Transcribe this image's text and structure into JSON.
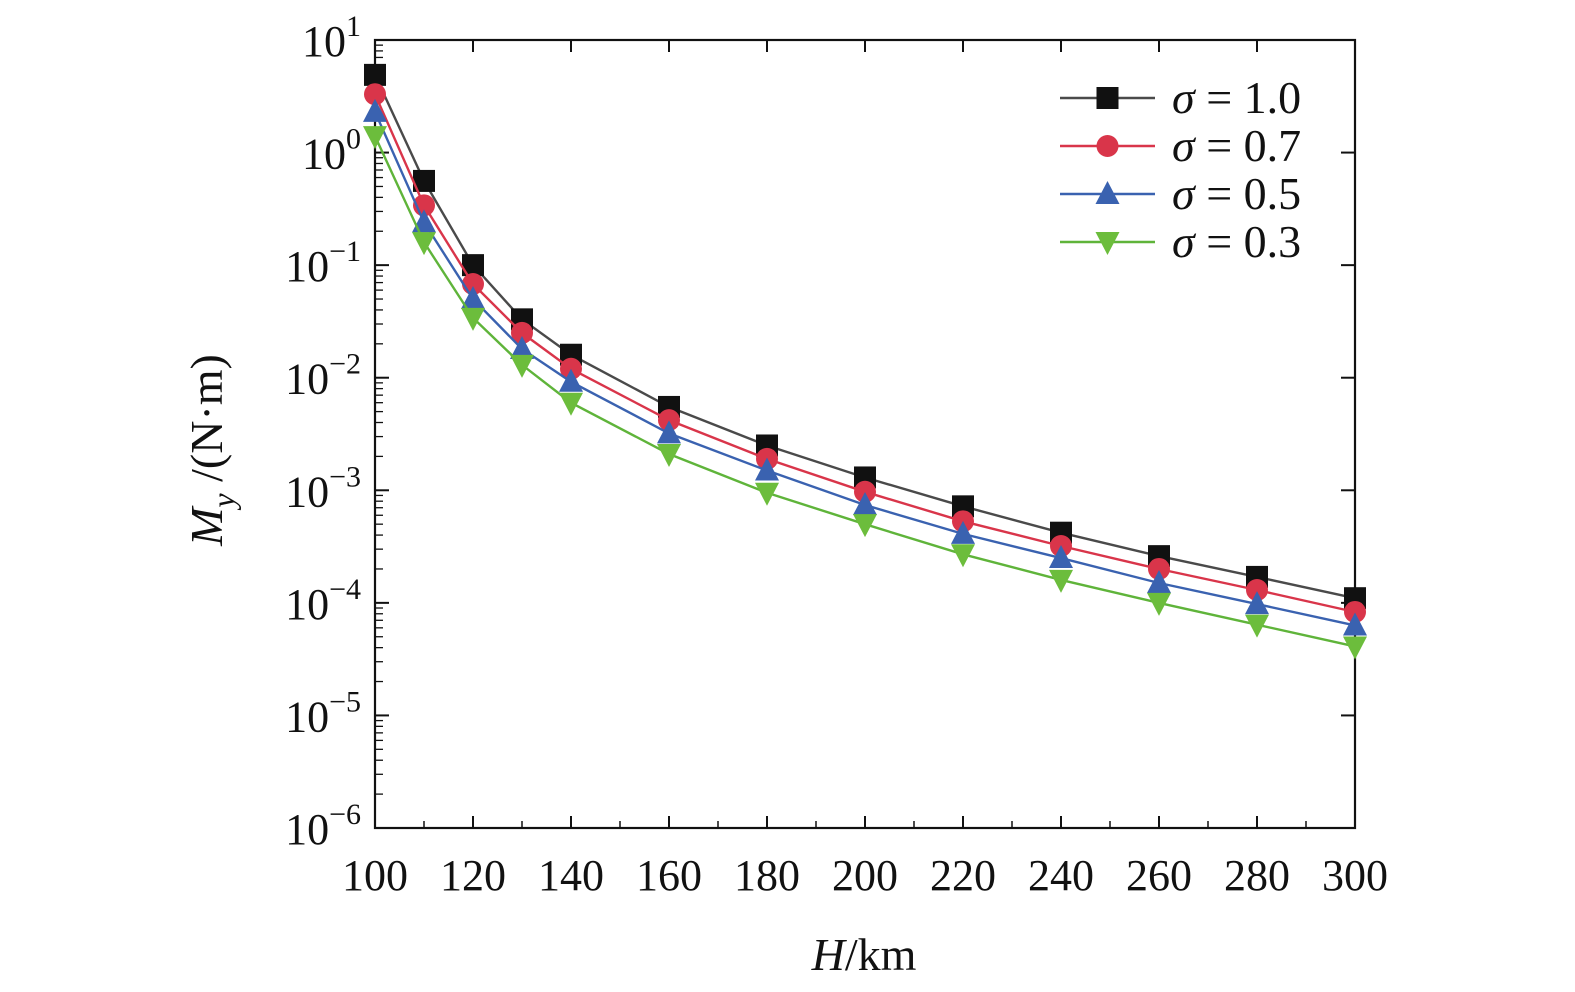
{
  "chart_data": {
    "type": "line",
    "xlabel_var": "H",
    "xlabel_unit": "/km",
    "ylabel_var": "M",
    "ylabel_sub": "y",
    "ylabel_unit": " /(N·m)",
    "x_scale": "linear",
    "y_scale": "log",
    "xlim": [
      100,
      300
    ],
    "ylim": [
      1e-06,
      10
    ],
    "x_ticks": [
      100,
      120,
      140,
      160,
      180,
      200,
      220,
      240,
      260,
      280,
      300
    ],
    "y_ticks": [
      {
        "value": 10,
        "base": "10",
        "exp": "1"
      },
      {
        "value": 1,
        "base": "10",
        "exp": "0"
      },
      {
        "value": 0.1,
        "base": "10",
        "exp": "−1"
      },
      {
        "value": 0.01,
        "base": "10",
        "exp": "−2"
      },
      {
        "value": 0.001,
        "base": "10",
        "exp": "−3"
      },
      {
        "value": 0.0001,
        "base": "10",
        "exp": "−4"
      },
      {
        "value": 1e-05,
        "base": "10",
        "exp": "−5"
      },
      {
        "value": 1e-06,
        "base": "10",
        "exp": "−6"
      }
    ],
    "grid": false,
    "legend_position": "top-right",
    "x": [
      100,
      110,
      120,
      130,
      140,
      160,
      180,
      200,
      220,
      240,
      260,
      280,
      300
    ],
    "series": [
      {
        "name": "σ = 1.0",
        "legend_symbol": "σ",
        "legend_value": " = 1.0",
        "color": "#4a4a4a",
        "marker_color": "#111111",
        "marker": "square",
        "values": [
          4.9,
          0.56,
          0.1,
          0.033,
          0.016,
          0.0055,
          0.0025,
          0.0013,
          0.00072,
          0.00042,
          0.00026,
          0.00017,
          0.00011
        ]
      },
      {
        "name": "σ = 0.7",
        "legend_symbol": "σ",
        "legend_value": " = 0.7",
        "color": "#d9354a",
        "marker_color": "#d9354a",
        "marker": "circle",
        "values": [
          3.3,
          0.34,
          0.068,
          0.025,
          0.012,
          0.0042,
          0.0019,
          0.00097,
          0.00053,
          0.00032,
          0.0002,
          0.00013,
          8.3e-05
        ]
      },
      {
        "name": "σ = 0.5",
        "legend_symbol": "σ",
        "legend_value": " = 0.5",
        "color": "#3a62b0",
        "marker_color": "#3a62b0",
        "marker": "triangle-up",
        "values": [
          2.3,
          0.24,
          0.05,
          0.018,
          0.0092,
          0.0032,
          0.0015,
          0.00074,
          0.00041,
          0.00025,
          0.00015,
          9.75e-05,
          6.3e-05
        ]
      },
      {
        "name": "σ = 0.3",
        "legend_symbol": "σ",
        "legend_value": " = 0.3",
        "color": "#5fb43a",
        "marker_color": "#6cbd3c",
        "marker": "triangle-down",
        "values": [
          1.4,
          0.16,
          0.034,
          0.013,
          0.006,
          0.0021,
          0.00095,
          0.0005,
          0.00027,
          0.00016,
          0.0001,
          6.4e-05,
          4.1e-05
        ]
      }
    ]
  }
}
